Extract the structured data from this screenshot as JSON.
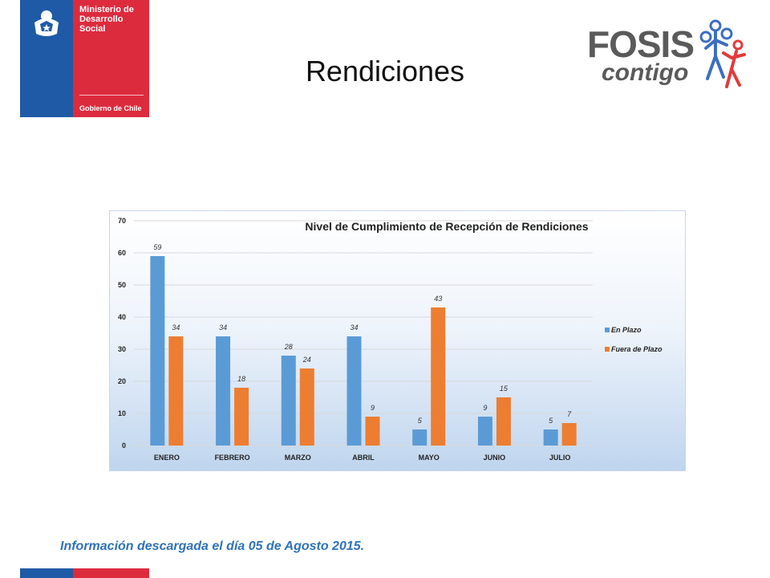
{
  "header": {
    "ministry_line1": "Ministerio de",
    "ministry_line2": "Desarrollo",
    "ministry_line3": "Social",
    "government": "Gobierno de Chile",
    "fosis_word": "FOSIS",
    "fosis_tagline": "contigo",
    "colors": {
      "blue": "#1f5aa6",
      "red": "#dd2b3e"
    }
  },
  "page": {
    "title": "Rendiciones"
  },
  "footer": {
    "note": "Información descargada el día 05 de Agosto 2015."
  },
  "chart_data": {
    "type": "bar",
    "title": "Nivel de Cumplimiento de Recepción de Rendiciones",
    "categories": [
      "ENERO",
      "FEBRERO",
      "MARZO",
      "ABRIL",
      "MAYO",
      "JUNIO",
      "JULIO"
    ],
    "series": [
      {
        "name": "En Plazo",
        "color": "#5b9bd5",
        "values": [
          59,
          34,
          28,
          34,
          5,
          9,
          5
        ]
      },
      {
        "name": "Fuera de Plazo",
        "color": "#ed7d31",
        "values": [
          34,
          18,
          24,
          9,
          43,
          15,
          7
        ]
      }
    ],
    "ylim": [
      0,
      70
    ],
    "yticks": [
      0,
      10,
      20,
      30,
      40,
      50,
      60,
      70
    ],
    "grid": true,
    "legend": "right",
    "xlabel": "",
    "ylabel": ""
  }
}
